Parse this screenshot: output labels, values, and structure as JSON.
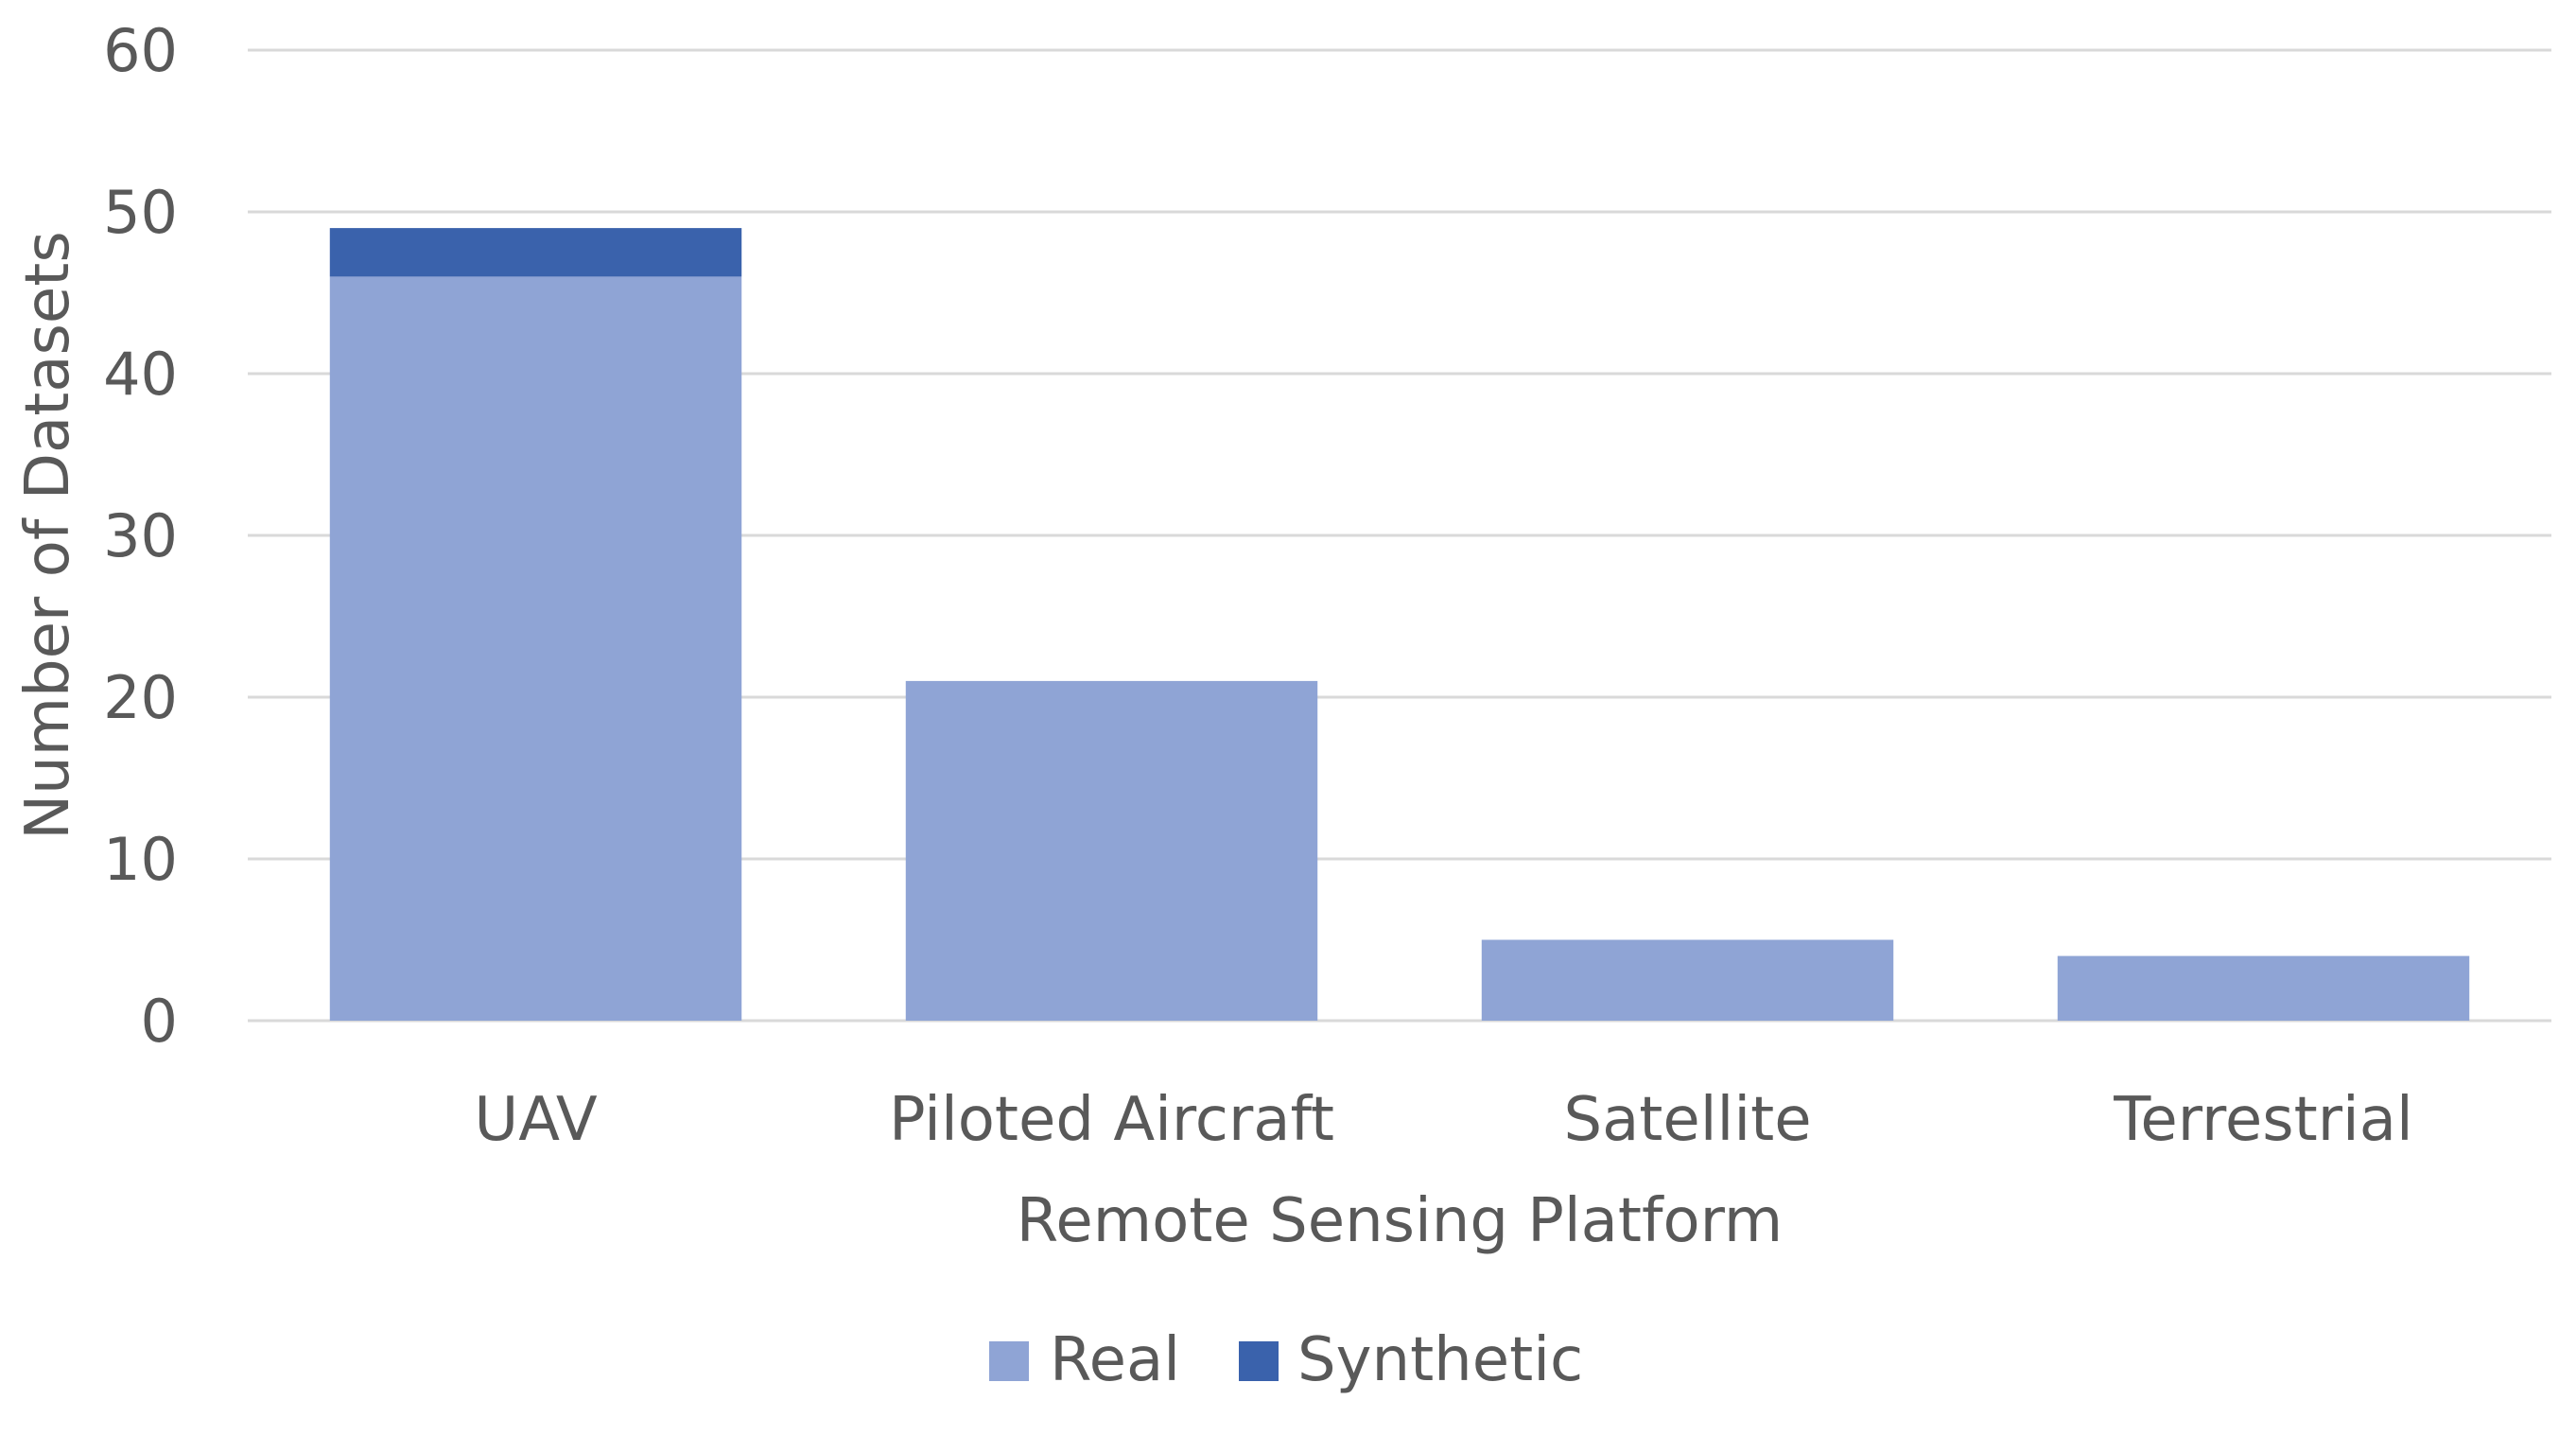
{
  "chart_data": {
    "type": "bar",
    "stacked": true,
    "categories": [
      "UAV",
      "Piloted Aircraft",
      "Satellite",
      "Terrestrial"
    ],
    "series": [
      {
        "name": "Real",
        "values": [
          46,
          21,
          5,
          4
        ],
        "color": "#8fa4d5"
      },
      {
        "name": "Synthetic",
        "values": [
          3,
          0,
          0,
          0
        ],
        "color": "#3a62ac"
      }
    ],
    "xlabel": "Remote Sensing Platform",
    "ylabel": "Number of Datasets",
    "ylim": [
      0,
      60
    ],
    "yticks": [
      0,
      10,
      20,
      30,
      40,
      50,
      60
    ],
    "grid": true,
    "legend_position": "bottom"
  }
}
